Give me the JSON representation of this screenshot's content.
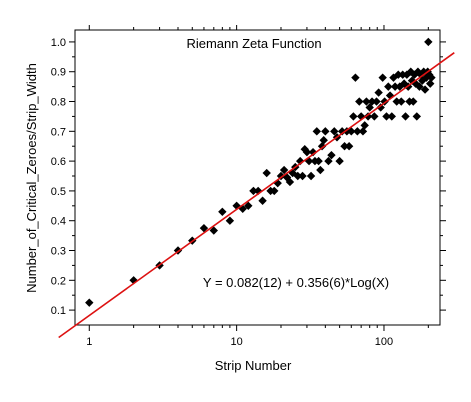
{
  "chart_data": {
    "type": "scatter",
    "title": "Riemann Zeta Function",
    "xlabel": "Strip Number",
    "ylabel": "Number_of_Critical_Zeroes/Strip_Width",
    "x_scale": "log",
    "xlim": [
      0.8,
      240
    ],
    "ylim": [
      0.05,
      1.04
    ],
    "x_ticks": [
      1,
      10,
      100
    ],
    "x_tick_labels": [
      "1",
      "10",
      "100"
    ],
    "y_ticks": [
      0.1,
      0.2,
      0.3,
      0.4,
      0.5,
      0.6,
      0.7,
      0.8,
      0.9,
      1.0
    ],
    "y_tick_labels": [
      "0.1",
      "0.2",
      "0.3",
      "0.4",
      "0.5",
      "0.6",
      "0.7",
      "0.8",
      "0.9",
      "1.0"
    ],
    "grid": false,
    "annotation": "Y = 0.082(12) + 0.356(6)*Log(X)",
    "marker_color": "#000000",
    "fit_color": "#dd1111",
    "fit": {
      "intercept": 0.082,
      "slope": 0.356,
      "log_base": 10
    },
    "series": [
      {
        "marker": "diamond",
        "points": [
          [
            1,
            0.125
          ],
          [
            2,
            0.2
          ],
          [
            3,
            0.25
          ],
          [
            4,
            0.3
          ],
          [
            5,
            0.333
          ],
          [
            6,
            0.375
          ],
          [
            7,
            0.367
          ],
          [
            8,
            0.43
          ],
          [
            9,
            0.4
          ],
          [
            10,
            0.45
          ],
          [
            11,
            0.44
          ],
          [
            12,
            0.45
          ],
          [
            13,
            0.5
          ],
          [
            14,
            0.5
          ],
          [
            15,
            0.467
          ],
          [
            16,
            0.56
          ],
          [
            17,
            0.5
          ],
          [
            18,
            0.5
          ],
          [
            19,
            0.526
          ],
          [
            20,
            0.55
          ],
          [
            21,
            0.57
          ],
          [
            22,
            0.545
          ],
          [
            23,
            0.53
          ],
          [
            24,
            0.56
          ],
          [
            25,
            0.58
          ],
          [
            26,
            0.55
          ],
          [
            27,
            0.6
          ],
          [
            28,
            0.55
          ],
          [
            29,
            0.64
          ],
          [
            30,
            0.63
          ],
          [
            31,
            0.6
          ],
          [
            32,
            0.55
          ],
          [
            33,
            0.63
          ],
          [
            34,
            0.6
          ],
          [
            35,
            0.7
          ],
          [
            36,
            0.6
          ],
          [
            37,
            0.57
          ],
          [
            38,
            0.65
          ],
          [
            39,
            0.67
          ],
          [
            40,
            0.7
          ],
          [
            42,
            0.6
          ],
          [
            44,
            0.62
          ],
          [
            46,
            0.7
          ],
          [
            48,
            0.68
          ],
          [
            50,
            0.6
          ],
          [
            52,
            0.7
          ],
          [
            54,
            0.65
          ],
          [
            56,
            0.7
          ],
          [
            58,
            0.65
          ],
          [
            60,
            0.7
          ],
          [
            62,
            0.75
          ],
          [
            64,
            0.88
          ],
          [
            66,
            0.7
          ],
          [
            68,
            0.8
          ],
          [
            70,
            0.75
          ],
          [
            72,
            0.7
          ],
          [
            74,
            0.72
          ],
          [
            76,
            0.8
          ],
          [
            78,
            0.75
          ],
          [
            80,
            0.78
          ],
          [
            83,
            0.8
          ],
          [
            86,
            0.75
          ],
          [
            89,
            0.8
          ],
          [
            92,
            0.83
          ],
          [
            95,
            0.78
          ],
          [
            98,
            0.88
          ],
          [
            101,
            0.8
          ],
          [
            104,
            0.75
          ],
          [
            107,
            0.85
          ],
          [
            110,
            0.82
          ],
          [
            113,
            0.75
          ],
          [
            116,
            0.88
          ],
          [
            119,
            0.85
          ],
          [
            122,
            0.8
          ],
          [
            125,
            0.89
          ],
          [
            128,
            0.85
          ],
          [
            131,
            0.8
          ],
          [
            134,
            0.89
          ],
          [
            137,
            0.86
          ],
          [
            140,
            0.75
          ],
          [
            143,
            0.89
          ],
          [
            146,
            0.85
          ],
          [
            149,
            0.8
          ],
          [
            152,
            0.9
          ],
          [
            155,
            0.87
          ],
          [
            158,
            0.8
          ],
          [
            161,
            0.89
          ],
          [
            164,
            0.86
          ],
          [
            167,
            0.75
          ],
          [
            170,
            0.9
          ],
          [
            174,
            0.85
          ],
          [
            178,
            0.89
          ],
          [
            182,
            0.87
          ],
          [
            186,
            0.9
          ],
          [
            190,
            0.84
          ],
          [
            194,
            0.88
          ],
          [
            198,
            0.9
          ],
          [
            200,
            1.0
          ],
          [
            203,
            0.89
          ],
          [
            206,
            0.86
          ],
          [
            210,
            0.88
          ]
        ]
      }
    ]
  }
}
